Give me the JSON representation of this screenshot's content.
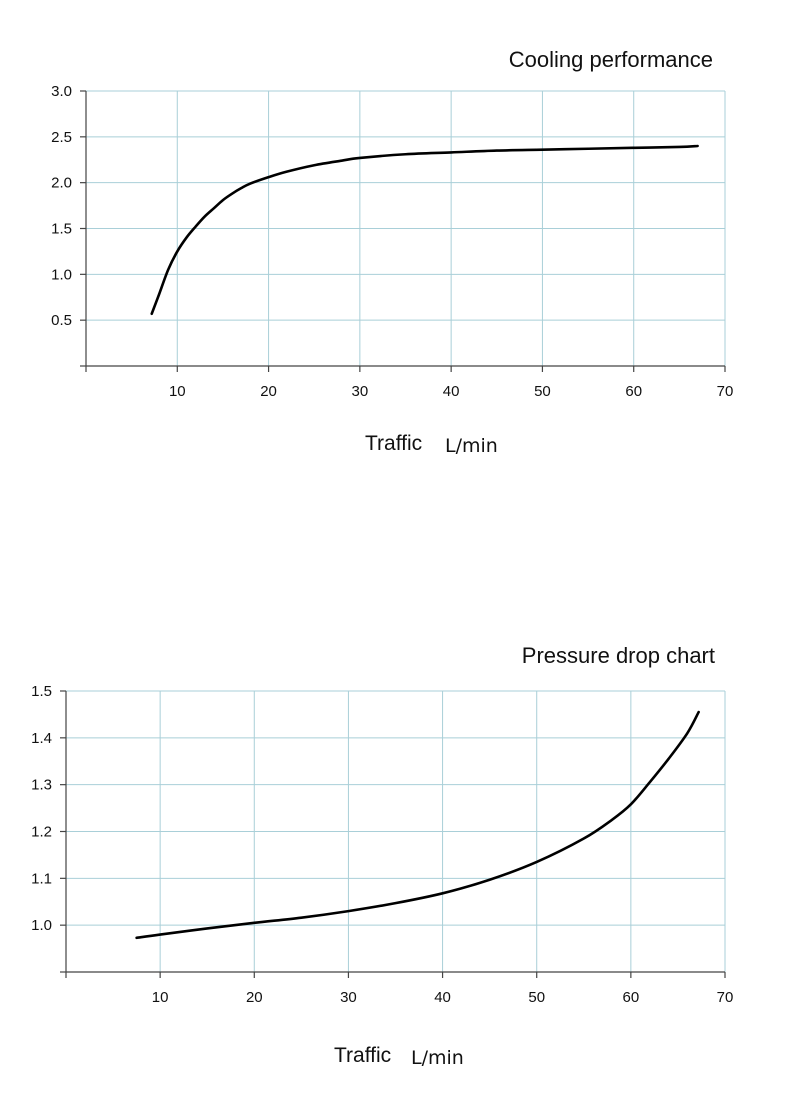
{
  "chart_data": [
    {
      "type": "line",
      "title": "Cooling performance",
      "xlabel": "Traffic",
      "xunit": "L/min",
      "ylabel": "",
      "xlim": [
        0,
        70
      ],
      "ylim": [
        0,
        3.0
      ],
      "xticks": [
        10,
        20,
        30,
        40,
        50,
        60,
        70
      ],
      "yticks": [
        0.5,
        1.0,
        1.5,
        2.0,
        2.5,
        3.0
      ],
      "grid": true,
      "series": [
        {
          "x": [
            7.2,
            8,
            9,
            10,
            11,
            12,
            13,
            14,
            15,
            16,
            17,
            18,
            20,
            22,
            25,
            28,
            30,
            35,
            40,
            45,
            50,
            55,
            60,
            65,
            67
          ],
          "y": [
            0.57,
            0.78,
            1.05,
            1.25,
            1.4,
            1.52,
            1.63,
            1.72,
            1.81,
            1.88,
            1.94,
            1.99,
            2.06,
            2.12,
            2.19,
            2.24,
            2.27,
            2.31,
            2.33,
            2.35,
            2.36,
            2.37,
            2.38,
            2.39,
            2.4
          ]
        }
      ]
    },
    {
      "type": "line",
      "title": "Pressure drop chart",
      "xlabel": "Traffic",
      "xunit": "L/min",
      "ylabel": "",
      "xlim": [
        0,
        70
      ],
      "ylim": [
        0.9,
        1.5
      ],
      "xticks": [
        10,
        20,
        30,
        40,
        50,
        60,
        70
      ],
      "yticks": [
        1.0,
        1.1,
        1.2,
        1.3,
        1.4,
        1.5
      ],
      "grid": true,
      "series": [
        {
          "x": [
            7.5,
            10,
            15,
            20,
            25,
            30,
            35,
            40,
            45,
            50,
            55,
            58,
            60,
            62,
            64,
            66,
            67.2
          ],
          "y": [
            0.973,
            0.98,
            0.993,
            1.005,
            1.016,
            1.03,
            1.047,
            1.068,
            1.097,
            1.135,
            1.185,
            1.225,
            1.258,
            1.305,
            1.355,
            1.41,
            1.455
          ]
        }
      ]
    }
  ]
}
